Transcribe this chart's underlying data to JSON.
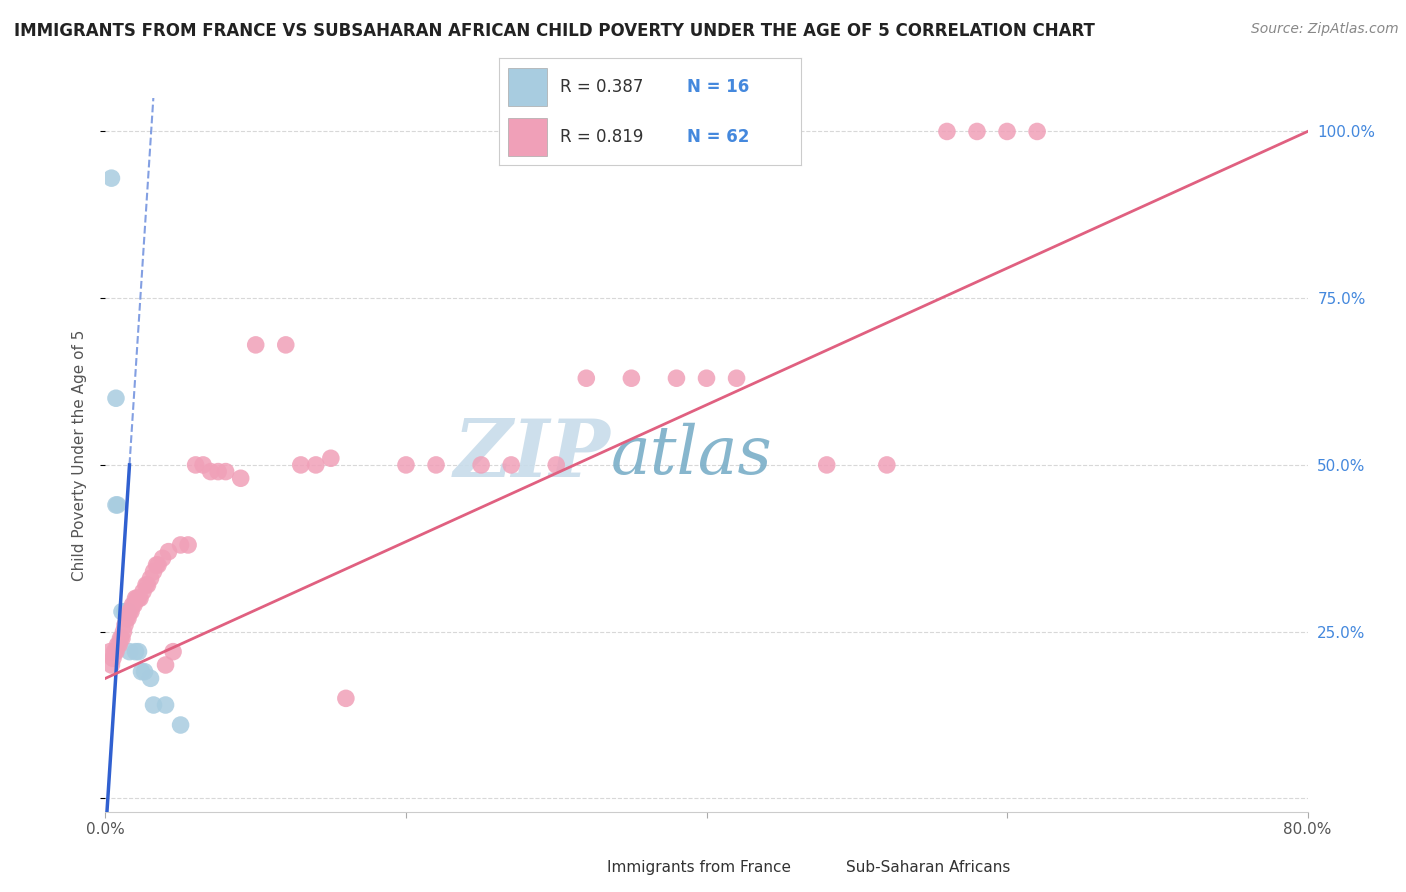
{
  "title": "IMMIGRANTS FROM FRANCE VS SUBSAHARAN AFRICAN CHILD POVERTY UNDER THE AGE OF 5 CORRELATION CHART",
  "source": "Source: ZipAtlas.com",
  "ylabel": "Child Poverty Under the Age of 5",
  "xlim": [
    0.0,
    0.8
  ],
  "ylim": [
    -0.02,
    1.05
  ],
  "blue_R": "0.387",
  "blue_N": "16",
  "pink_R": "0.819",
  "pink_N": "62",
  "blue_color": "#a8cce0",
  "pink_color": "#f0a0b8",
  "blue_line_color": "#3060d0",
  "pink_line_color": "#e06080",
  "watermark_zip": "#c8dcea",
  "watermark_atlas": "#7aaec8",
  "background_color": "#ffffff",
  "grid_color": "#d8d8d8",
  "title_color": "#222222",
  "right_tick_color": "#4488dd",
  "blue_scatter": [
    [
      0.004,
      0.93
    ],
    [
      0.007,
      0.6
    ],
    [
      0.007,
      0.44
    ],
    [
      0.008,
      0.44
    ],
    [
      0.011,
      0.28
    ],
    [
      0.013,
      0.28
    ],
    [
      0.015,
      0.28
    ],
    [
      0.016,
      0.22
    ],
    [
      0.02,
      0.22
    ],
    [
      0.022,
      0.22
    ],
    [
      0.024,
      0.19
    ],
    [
      0.026,
      0.19
    ],
    [
      0.03,
      0.18
    ],
    [
      0.032,
      0.14
    ],
    [
      0.04,
      0.14
    ],
    [
      0.05,
      0.11
    ]
  ],
  "pink_scatter": [
    [
      0.003,
      0.22
    ],
    [
      0.004,
      0.2
    ],
    [
      0.005,
      0.21
    ],
    [
      0.006,
      0.22
    ],
    [
      0.007,
      0.22
    ],
    [
      0.008,
      0.23
    ],
    [
      0.009,
      0.23
    ],
    [
      0.01,
      0.24
    ],
    [
      0.011,
      0.24
    ],
    [
      0.012,
      0.25
    ],
    [
      0.013,
      0.26
    ],
    [
      0.014,
      0.27
    ],
    [
      0.015,
      0.27
    ],
    [
      0.016,
      0.28
    ],
    [
      0.017,
      0.28
    ],
    [
      0.018,
      0.29
    ],
    [
      0.019,
      0.29
    ],
    [
      0.02,
      0.3
    ],
    [
      0.021,
      0.3
    ],
    [
      0.022,
      0.3
    ],
    [
      0.023,
      0.3
    ],
    [
      0.025,
      0.31
    ],
    [
      0.027,
      0.32
    ],
    [
      0.028,
      0.32
    ],
    [
      0.03,
      0.33
    ],
    [
      0.032,
      0.34
    ],
    [
      0.034,
      0.35
    ],
    [
      0.035,
      0.35
    ],
    [
      0.038,
      0.36
    ],
    [
      0.04,
      0.2
    ],
    [
      0.042,
      0.37
    ],
    [
      0.045,
      0.22
    ],
    [
      0.05,
      0.38
    ],
    [
      0.055,
      0.38
    ],
    [
      0.06,
      0.5
    ],
    [
      0.065,
      0.5
    ],
    [
      0.07,
      0.49
    ],
    [
      0.075,
      0.49
    ],
    [
      0.08,
      0.49
    ],
    [
      0.09,
      0.48
    ],
    [
      0.1,
      0.68
    ],
    [
      0.12,
      0.68
    ],
    [
      0.13,
      0.5
    ],
    [
      0.14,
      0.5
    ],
    [
      0.15,
      0.51
    ],
    [
      0.16,
      0.15
    ],
    [
      0.2,
      0.5
    ],
    [
      0.22,
      0.5
    ],
    [
      0.25,
      0.5
    ],
    [
      0.27,
      0.5
    ],
    [
      0.3,
      0.5
    ],
    [
      0.32,
      0.63
    ],
    [
      0.35,
      0.63
    ],
    [
      0.38,
      0.63
    ],
    [
      0.4,
      0.63
    ],
    [
      0.42,
      0.63
    ],
    [
      0.48,
      0.5
    ],
    [
      0.52,
      0.5
    ],
    [
      0.56,
      1.0
    ],
    [
      0.58,
      1.0
    ],
    [
      0.6,
      1.0
    ],
    [
      0.62,
      1.0
    ]
  ]
}
